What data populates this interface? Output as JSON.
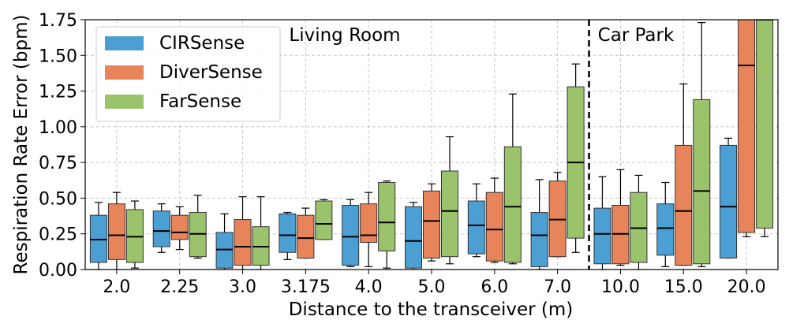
{
  "chart_data": {
    "type": "box",
    "title": "",
    "xlabel": "Distance to the transceiver (m)",
    "ylabel": "Respiration Rate Error (bpm)",
    "ylim": [
      0,
      1.75
    ],
    "yticks": [
      "0.00",
      "0.25",
      "0.50",
      "0.75",
      "1.00",
      "1.25",
      "1.50",
      "1.75"
    ],
    "categories": [
      "2.0",
      "2.25",
      "3.0",
      "3.175",
      "4.0",
      "5.0",
      "6.0",
      "7.0",
      "10.0",
      "15.0",
      "20.0"
    ],
    "grid": true,
    "legend_position": "top-left",
    "regions": [
      {
        "label": "Living Room",
        "from_category": 0,
        "to_category": 7
      },
      {
        "label": "Car Park",
        "from_category": 8,
        "to_category": 10
      }
    ],
    "series": [
      {
        "name": "CIRSense",
        "color": "#4c9fd3",
        "boxes": [
          {
            "whislo": 0.0,
            "q1": 0.05,
            "med": 0.21,
            "q3": 0.38,
            "whishi": 0.47
          },
          {
            "whislo": 0.12,
            "q1": 0.16,
            "med": 0.27,
            "q3": 0.41,
            "whishi": 0.46
          },
          {
            "whislo": 0.0,
            "q1": 0.01,
            "med": 0.14,
            "q3": 0.26,
            "whishi": 0.39
          },
          {
            "whislo": 0.07,
            "q1": 0.12,
            "med": 0.24,
            "q3": 0.39,
            "whishi": 0.4
          },
          {
            "whislo": 0.02,
            "q1": 0.03,
            "med": 0.23,
            "q3": 0.45,
            "whishi": 0.49
          },
          {
            "whislo": 0.0,
            "q1": 0.01,
            "med": 0.2,
            "q3": 0.44,
            "whishi": 0.47
          },
          {
            "whislo": 0.09,
            "q1": 0.11,
            "med": 0.31,
            "q3": 0.48,
            "whishi": 0.6
          },
          {
            "whislo": 0.0,
            "q1": 0.02,
            "med": 0.24,
            "q3": 0.4,
            "whishi": 0.63
          },
          {
            "whislo": 0.0,
            "q1": 0.04,
            "med": 0.25,
            "q3": 0.43,
            "whishi": 0.65
          },
          {
            "whislo": 0.02,
            "q1": 0.1,
            "med": 0.29,
            "q3": 0.46,
            "whishi": 0.61
          },
          {
            "whislo": 0.08,
            "q1": 0.08,
            "med": 0.44,
            "q3": 0.87,
            "whishi": 0.92
          }
        ]
      },
      {
        "name": "DiverSense",
        "color": "#e8845a",
        "boxes": [
          {
            "whislo": 0.0,
            "q1": 0.07,
            "med": 0.24,
            "q3": 0.46,
            "whishi": 0.54
          },
          {
            "whislo": 0.14,
            "q1": 0.21,
            "med": 0.26,
            "q3": 0.38,
            "whishi": 0.44
          },
          {
            "whislo": 0.0,
            "q1": 0.03,
            "med": 0.16,
            "q3": 0.35,
            "whishi": 0.51
          },
          {
            "whislo": 0.08,
            "q1": 0.08,
            "med": 0.22,
            "q3": 0.38,
            "whishi": 0.43
          },
          {
            "whislo": 0.02,
            "q1": 0.19,
            "med": 0.24,
            "q3": 0.46,
            "whishi": 0.54
          },
          {
            "whislo": 0.06,
            "q1": 0.08,
            "med": 0.34,
            "q3": 0.55,
            "whishi": 0.6
          },
          {
            "whislo": 0.05,
            "q1": 0.06,
            "med": 0.28,
            "q3": 0.54,
            "whishi": 0.64
          },
          {
            "whislo": 0.09,
            "q1": 0.09,
            "med": 0.35,
            "q3": 0.62,
            "whishi": 0.68
          },
          {
            "whislo": 0.03,
            "q1": 0.04,
            "med": 0.25,
            "q3": 0.45,
            "whishi": 0.7
          },
          {
            "whislo": 0.03,
            "q1": 0.03,
            "med": 0.41,
            "q3": 0.87,
            "whishi": 1.3
          },
          {
            "whislo": 0.23,
            "q1": 0.26,
            "med": 1.43,
            "q3": 1.75,
            "whishi": 1.75
          }
        ]
      },
      {
        "name": "FarSense",
        "color": "#9bc36b",
        "boxes": [
          {
            "whislo": 0.01,
            "q1": 0.05,
            "med": 0.23,
            "q3": 0.42,
            "whishi": 0.48
          },
          {
            "whislo": 0.08,
            "q1": 0.09,
            "med": 0.25,
            "q3": 0.4,
            "whishi": 0.52
          },
          {
            "whislo": 0.0,
            "q1": 0.03,
            "med": 0.16,
            "q3": 0.3,
            "whishi": 0.51
          },
          {
            "whislo": 0.21,
            "q1": 0.21,
            "med": 0.32,
            "q3": 0.48,
            "whishi": 0.49
          },
          {
            "whislo": 0.01,
            "q1": 0.13,
            "med": 0.33,
            "q3": 0.61,
            "whishi": 0.62
          },
          {
            "whislo": 0.04,
            "q1": 0.09,
            "med": 0.41,
            "q3": 0.69,
            "whishi": 0.93
          },
          {
            "whislo": 0.04,
            "q1": 0.05,
            "med": 0.44,
            "q3": 0.86,
            "whishi": 1.23
          },
          {
            "whislo": 0.12,
            "q1": 0.22,
            "med": 0.75,
            "q3": 1.28,
            "whishi": 1.44
          },
          {
            "whislo": 0.0,
            "q1": 0.05,
            "med": 0.29,
            "q3": 0.54,
            "whishi": 0.66
          },
          {
            "whislo": 0.02,
            "q1": 0.04,
            "med": 0.55,
            "q3": 1.19,
            "whishi": 1.73
          },
          {
            "whislo": 0.23,
            "q1": 0.29,
            "med": 1.75,
            "q3": 1.75,
            "whishi": 1.75
          }
        ]
      }
    ]
  }
}
